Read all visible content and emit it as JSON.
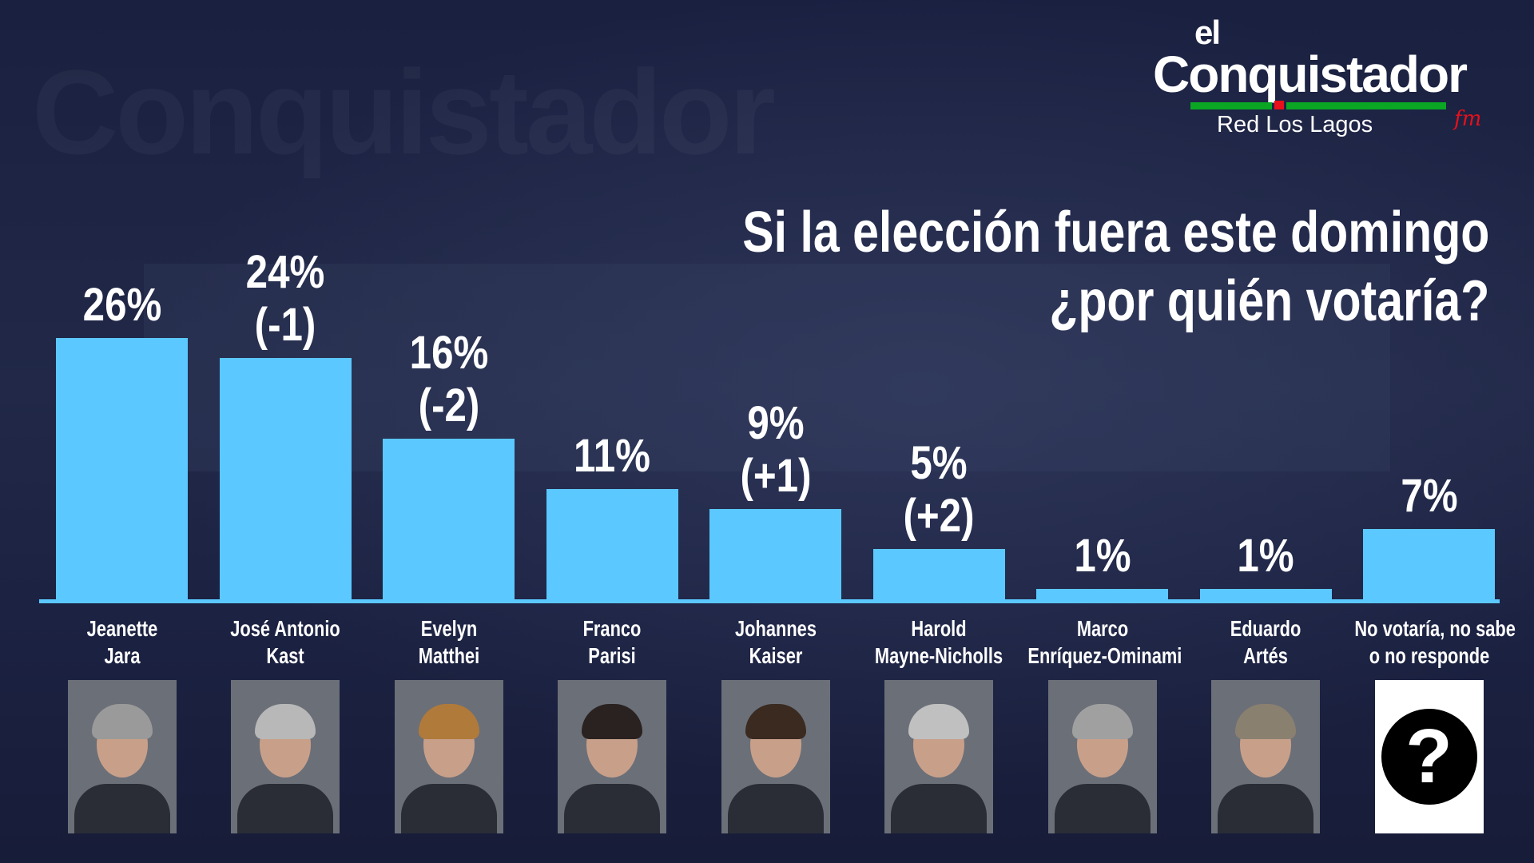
{
  "logo": {
    "line1": "el",
    "line2": "Conquistador",
    "line3": "Red Los Lagos",
    "mark": "fm"
  },
  "watermark": "Conquistador",
  "title": {
    "line1": "Si la elección fuera este domingo",
    "line2": "¿por quién votaría?"
  },
  "colors": {
    "bar": "#5bc8ff",
    "background": "#1b2142"
  },
  "chart_data": {
    "type": "bar",
    "title": "Si la elección fuera este domingo ¿por quién votaría?",
    "categories": [
      "Jeanette Jara",
      "José Antonio Kast",
      "Evelyn Matthei",
      "Franco Parisi",
      "Johannes Kaiser",
      "Harold Mayne-Nicholls",
      "Marco Enríquez-Ominami",
      "Eduardo Artés",
      "No votaría, no sabe o no responde"
    ],
    "values": [
      26,
      24,
      16,
      11,
      9,
      5,
      1,
      1,
      7
    ],
    "unit": "%",
    "ylim": [
      0,
      26
    ],
    "bars": [
      {
        "name1": "Jeanette",
        "name2": "Jara",
        "label": "26%",
        "change": "",
        "hair": "#9a9a9a"
      },
      {
        "name1": "José Antonio",
        "name2": "Kast",
        "label": "24%",
        "change": "(-1)",
        "hair": "#b8b8b8"
      },
      {
        "name1": "Evelyn",
        "name2": "Matthei",
        "label": "16%",
        "change": "(-2)",
        "hair": "#b07a3a"
      },
      {
        "name1": "Franco",
        "name2": "Parisi",
        "label": "11%",
        "change": "",
        "hair": "#2a2220"
      },
      {
        "name1": "Johannes",
        "name2": "Kaiser",
        "label": "9%",
        "change": "(+1)",
        "hair": "#3a2a20"
      },
      {
        "name1": "Harold",
        "name2": "Mayne-Nicholls",
        "label": "5%",
        "change": "(+2)",
        "hair": "#c0c0c0"
      },
      {
        "name1": "Marco",
        "name2": "Enríquez-Ominami",
        "label": "1%",
        "change": "",
        "hair": "#a0a0a0"
      },
      {
        "name1": "Eduardo",
        "name2": "Artés",
        "label": "1%",
        "change": "",
        "hair": "#8a8070"
      },
      {
        "name1": "No votaría, no sabe",
        "name2": "o no responde",
        "label": "7%",
        "change": "",
        "icon": "?"
      }
    ]
  }
}
